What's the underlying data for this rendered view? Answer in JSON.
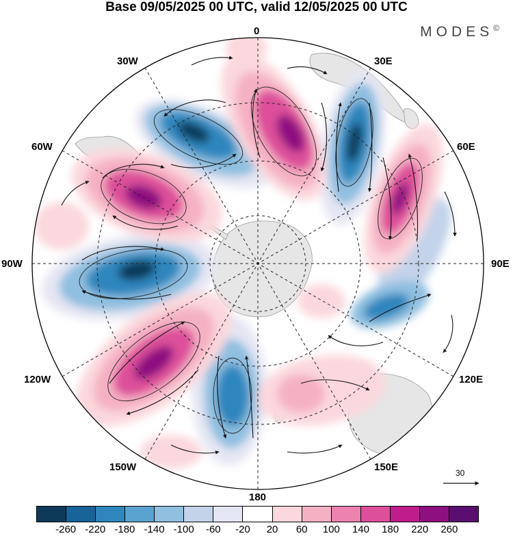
{
  "title": "Base 09/05/2025 00 UTC, valid 12/05/2025 00 UTC",
  "brand": "MODES",
  "brand_mark": "©",
  "longitude_labels": {
    "lon0": "0",
    "lon30e": "30E",
    "lon60e": "60E",
    "lon90e": "90E",
    "lon120e": "120E",
    "lon150e": "150E",
    "lon180": "180",
    "lon150w": "150W",
    "lon120w": "120W",
    "lon90w": "90W",
    "lon60w": "60W",
    "lon30w": "30W"
  },
  "reference_vector": "30",
  "colorbar": {
    "colors": [
      "#0e3a5a",
      "#17639a",
      "#2e86bd",
      "#5aa3d0",
      "#90bfe0",
      "#c3d3ea",
      "#e5e6f3",
      "#ffffff",
      "#fbd8dd",
      "#f5b1c4",
      "#ec82ae",
      "#dd4f9a",
      "#bf1d8c",
      "#8e0f80",
      "#5a0f70"
    ],
    "tick_labels": [
      "-260",
      "-220",
      "-180",
      "-140",
      "-100",
      "-60",
      "-20",
      "20",
      "60",
      "100",
      "140",
      "180",
      "220",
      "260"
    ]
  },
  "colors": {
    "land": "#e6e6e6",
    "coast": "#999999",
    "grid": "#222222",
    "arrow": "#111111"
  }
}
